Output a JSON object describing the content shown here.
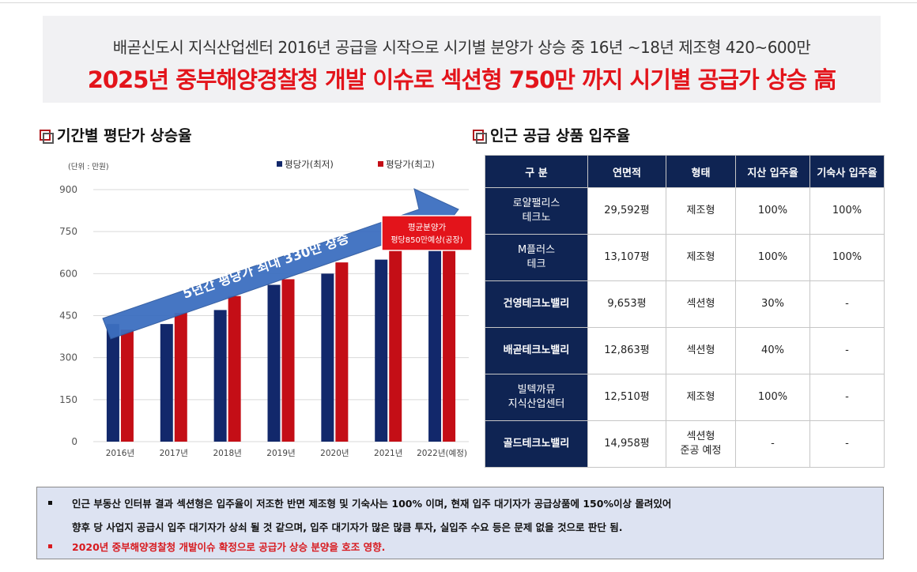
{
  "header": {
    "subtitle": "배곧신도시 지식산업센터 2016년 공급을 시작으로 시기별 분양가 상승 중 16년 ~18년 제조형 420~600만",
    "title": "2025년 중부해양경찰청 개발 이슈로 섹션형 750만 까지 시기별 공급가 상승 高"
  },
  "left_section": {
    "title": "기간별 평단가 상승율"
  },
  "right_section": {
    "title": "인근 공급 상품 입주율"
  },
  "chart_data": {
    "type": "bar",
    "unit_label": "(단위 : 만원)",
    "categories": [
      "2016년",
      "2017년",
      "2018년",
      "2019년",
      "2020년",
      "2021년",
      "2022년(예정)"
    ],
    "series": [
      {
        "name": "평당가(최저)",
        "color": "#12286b",
        "values": [
          420,
          420,
          470,
          560,
          600,
          650,
          690
        ]
      },
      {
        "name": "평당가(최고)",
        "color": "#c40e16",
        "values": [
          400,
          460,
          520,
          580,
          640,
          690,
          700
        ]
      }
    ],
    "yticks": [
      0,
      150,
      300,
      450,
      600,
      750,
      900
    ],
    "ylim": [
      0,
      900
    ],
    "grid": true,
    "legend": "top-right",
    "arrow_label": "5년간 평당가 최대 330만 상승",
    "callout": [
      "평균분양가",
      "평당850만예상(공장)"
    ]
  },
  "table": {
    "headers": [
      "구 분",
      "연면적",
      "형태",
      "지산 입주율",
      "기숙사 입주율"
    ],
    "rows": [
      {
        "name_lines": [
          "로얄팰리스",
          "테크노"
        ],
        "bold": false,
        "area": "29,592평",
        "type_lines": [
          "제조형"
        ],
        "rate": "100%",
        "dorm": "100%"
      },
      {
        "name_lines": [
          "M플러스",
          "테크"
        ],
        "bold": false,
        "area": "13,107평",
        "type_lines": [
          "제조형"
        ],
        "rate": "100%",
        "dorm": "100%"
      },
      {
        "name_lines": [
          "건영테크노밸리"
        ],
        "bold": true,
        "area": "9,653평",
        "type_lines": [
          "섹션형"
        ],
        "rate": "30%",
        "dorm": "-"
      },
      {
        "name_lines": [
          "배곧테크노밸리"
        ],
        "bold": true,
        "area": "12,863평",
        "type_lines": [
          "섹션형"
        ],
        "rate": "40%",
        "dorm": "-"
      },
      {
        "name_lines": [
          "빌텍까뮤",
          "지식산업센터"
        ],
        "bold": false,
        "area": "12,510평",
        "type_lines": [
          "제조형"
        ],
        "rate": "100%",
        "dorm": "-"
      },
      {
        "name_lines": [
          "골드테크노밸리"
        ],
        "bold": true,
        "area": "14,958평",
        "type_lines": [
          "섹션형",
          "준공 예정"
        ],
        "rate": "-",
        "dorm": "-"
      }
    ]
  },
  "notes": {
    "line1": "인근 부동산 인터뷰 결과 섹션형은 입주율이 저조한 반면 제조형 및 기숙사는 100% 이며, 현재 입주 대기자가 공급상품에 150%이상 몰려있어",
    "line2": "향후 당 사업지 공급시 입주 대기자가 상쇠 될 것 같으며, 입주 대기자가 많은 많큼 투자, 실입주 수요 등은 문제 없을 것으로 판단 됨.",
    "line3": "2020년 중부해양경찰청 개발이슈 확정으로 공급가 상승 분양을 호조 영향."
  }
}
